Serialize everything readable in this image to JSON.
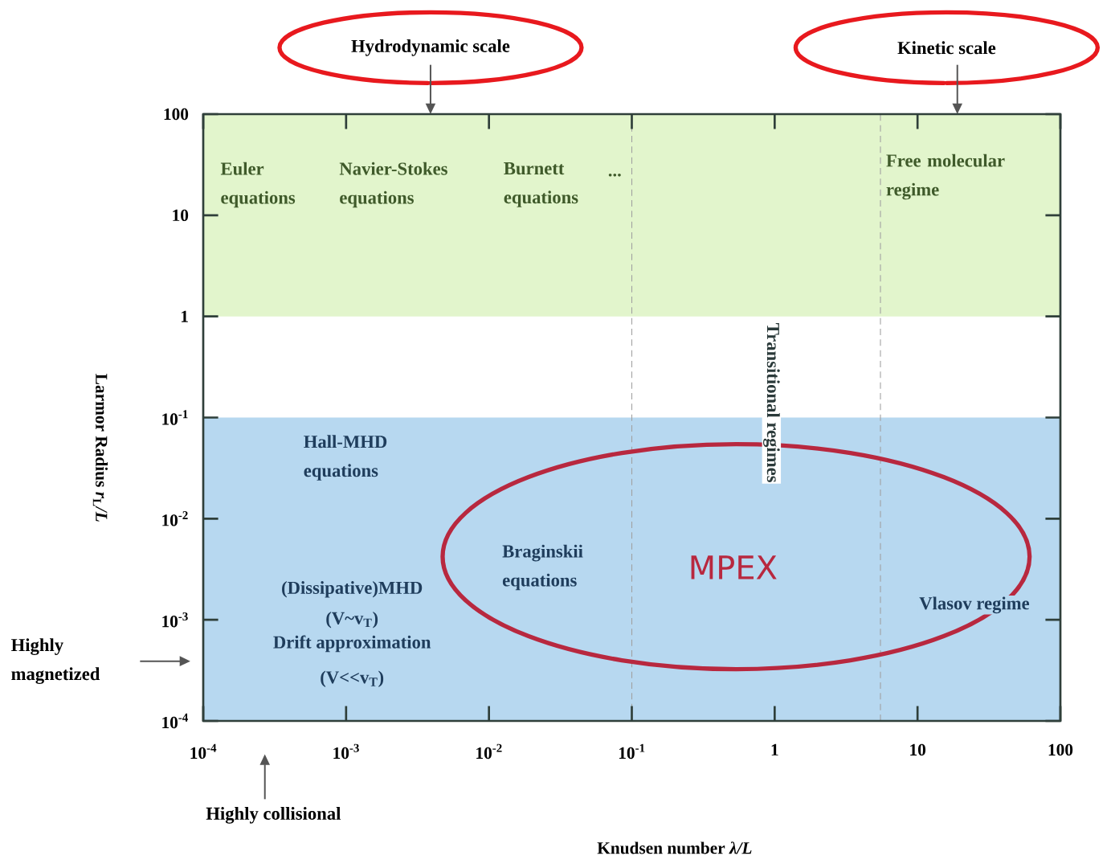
{
  "chart_data": {
    "type": "scatter",
    "xlabel": "Knudsen number *λ/L*",
    "ylabel": "Larmor Radius *r*$_{L}$*/L*",
    "log": "xy",
    "xlim": [
      0.0001,
      100
    ],
    "ylim": [
      0.0001,
      100
    ],
    "xticks": [
      {
        "value": 0.0001,
        "label": "10$^{-4}$"
      },
      {
        "value": 0.001,
        "label": "10$^{-3}$"
      },
      {
        "value": 0.01,
        "label": "10$^{-2}$"
      },
      {
        "value": 0.1,
        "label": "10$^{-1}$"
      },
      1,
      10,
      100
    ],
    "yticks": [
      {
        "value": 0.0001,
        "label": "10$^{-4}$"
      },
      {
        "value": 0.001,
        "label": "10$^{-3}$"
      },
      {
        "value": 0.01,
        "label": "10$^{-2}$"
      },
      {
        "value": 0.1,
        "label": "10$^{-1}$"
      },
      1,
      10,
      100
    ],
    "bands": [
      {
        "axis": "y",
        "from": 1,
        "to": 100,
        "color": "#e2f5cc"
      },
      {
        "axis": "y",
        "from": 0.0001,
        "to": 0.1,
        "color": "#b7d8f0"
      }
    ],
    "ref_lines": [
      {
        "axis": "x",
        "value": 0.1,
        "color": "#a0a0a0",
        "line_style": "dashed"
      },
      {
        "axis": "x",
        "value": 5.5,
        "color": "#a0a0a0",
        "line_style": "dashed"
      }
    ],
    "annotations": [
      "Hydrodynamic scale",
      "Kinetic scale",
      "Highly magnetized",
      "Highly collisional",
      "Euler equations",
      "Navier-Stokes equations",
      "Burnett equations",
      "...",
      "Free molecular regime",
      "Transitional regimes",
      "Hall-MHD equations",
      "Braginskii equations",
      "Vlasov regime",
      "(Dissipative)MHD",
      "(V~v$_{T}$)",
      "Drift approximation",
      "(V<<v$_{T}$)",
      "MPEX"
    ]
  }
}
